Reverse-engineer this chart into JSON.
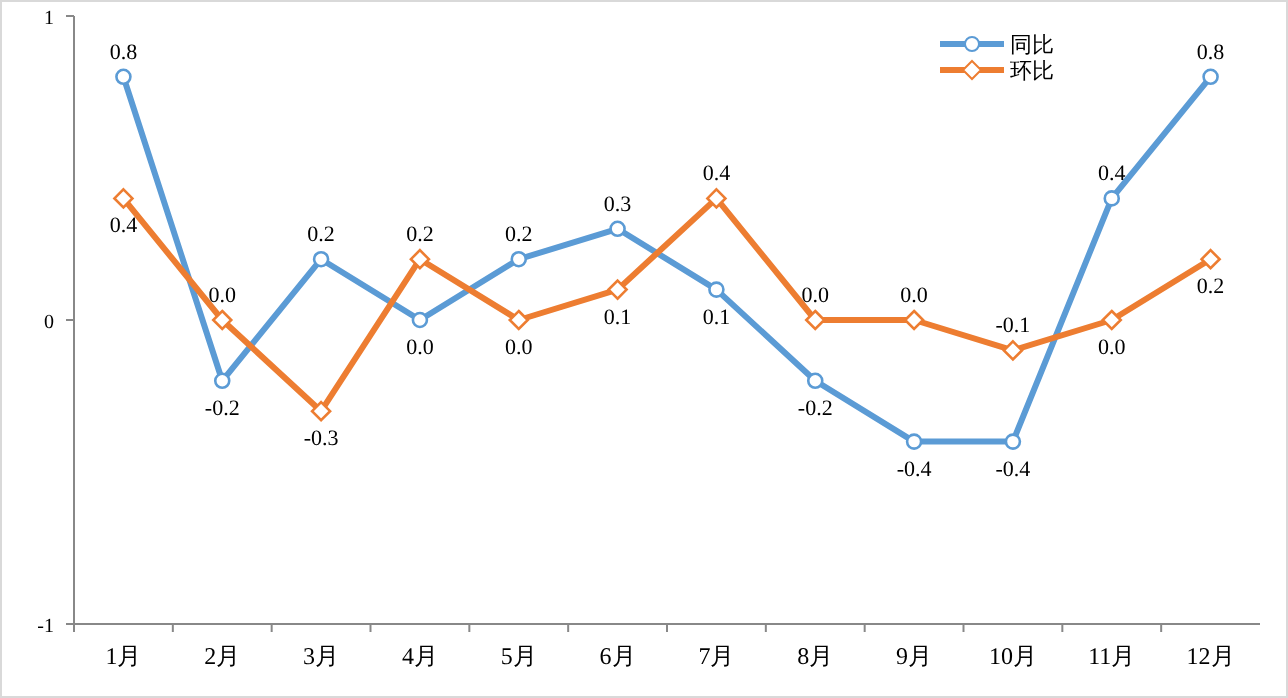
{
  "chart_data": {
    "type": "line",
    "categories": [
      "1月",
      "2月",
      "3月",
      "4月",
      "5月",
      "6月",
      "7月",
      "8月",
      "9月",
      "10月",
      "11月",
      "12月"
    ],
    "series": [
      {
        "name": "同比",
        "color": "#5b9bd5",
        "marker": "circle",
        "values": [
          0.8,
          -0.2,
          0.2,
          0.0,
          0.2,
          0.3,
          0.1,
          -0.2,
          -0.4,
          -0.4,
          0.4,
          0.8
        ],
        "value_labels": [
          "0.8",
          "-0.2",
          "0.2",
          "0.0",
          "0.2",
          "0.3",
          "0.1",
          "-0.2",
          "-0.4",
          "-0.4",
          "0.4",
          "0.8"
        ]
      },
      {
        "name": "环比",
        "color": "#ed7d31",
        "marker": "diamond",
        "values": [
          0.4,
          0.0,
          -0.3,
          0.2,
          0.0,
          0.1,
          0.4,
          0.0,
          0.0,
          -0.1,
          0.0,
          0.2
        ],
        "value_labels": [
          "0.4",
          "0.0",
          "-0.3",
          "0.2",
          "0.0",
          "0.1",
          "0.4",
          "0.0",
          "0.0",
          "-0.1",
          "0.0",
          "0.2"
        ]
      }
    ],
    "ylim": [
      -1,
      1
    ],
    "yticks": [
      -1,
      0,
      1
    ],
    "grid": false,
    "legend": "top right",
    "line_style": "solid"
  }
}
